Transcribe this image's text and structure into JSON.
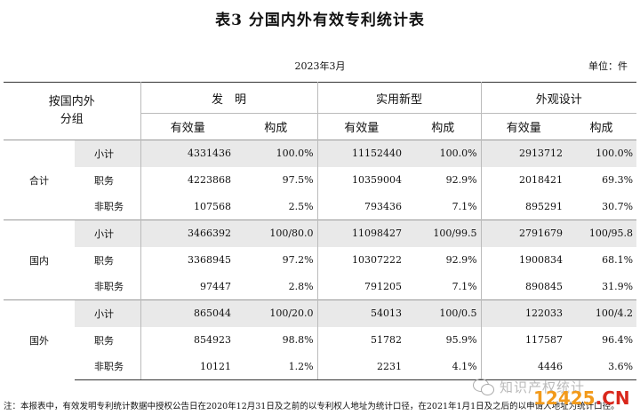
{
  "title": "表3  分国内外有效专利统计表",
  "date": "2023年3月",
  "unit": "单位：件",
  "header": {
    "group_line1": "按国内外",
    "group_line2": "分组",
    "invention": "发　明",
    "utility": "实用新型",
    "design": "外观设计",
    "count": "有效量",
    "share": "构成"
  },
  "groups": [
    {
      "name": "合计",
      "rows": [
        {
          "label": "小计",
          "values": [
            "4331436",
            "100.0%",
            "11152440",
            "100.0%",
            "2913712",
            "100.0%"
          ]
        },
        {
          "label": "职务",
          "values": [
            "4223868",
            "97.5%",
            "10359004",
            "92.9%",
            "2018421",
            "69.3%"
          ]
        },
        {
          "label": "非职务",
          "values": [
            "107568",
            "2.5%",
            "793436",
            "7.1%",
            "895291",
            "30.7%"
          ]
        }
      ]
    },
    {
      "name": "国内",
      "rows": [
        {
          "label": "小计",
          "values": [
            "3466392",
            "100/80.0",
            "11098427",
            "100/99.5",
            "2791679",
            "100/95.8"
          ]
        },
        {
          "label": "职务",
          "values": [
            "3368945",
            "97.2%",
            "10307222",
            "92.9%",
            "1900834",
            "68.1%"
          ]
        },
        {
          "label": "非职务",
          "values": [
            "97447",
            "2.8%",
            "791205",
            "7.1%",
            "890845",
            "31.9%"
          ]
        }
      ]
    },
    {
      "name": "国外",
      "rows": [
        {
          "label": "小计",
          "values": [
            "865044",
            "100/20.0",
            "54013",
            "100/0.5",
            "122033",
            "100/4.2"
          ]
        },
        {
          "label": "职务",
          "values": [
            "854923",
            "98.8%",
            "51782",
            "95.9%",
            "117587",
            "96.4%"
          ]
        },
        {
          "label": "非职务",
          "values": [
            "10121",
            "1.2%",
            "2231",
            "4.1%",
            "4446",
            "3.6%"
          ]
        }
      ]
    }
  ],
  "note": "注：本报表中，有效发明专利统计数据中授权公告日在2020年12月31日及之前的以专利权人地址为统计口径，在2021年1月1日及之后的以申请人地址为统计口径。",
  "watermark": {
    "text": "知识产权统计",
    "icon": "wechat-icon"
  },
  "logo": {
    "num": "12425",
    "suffix": ".CN"
  }
}
